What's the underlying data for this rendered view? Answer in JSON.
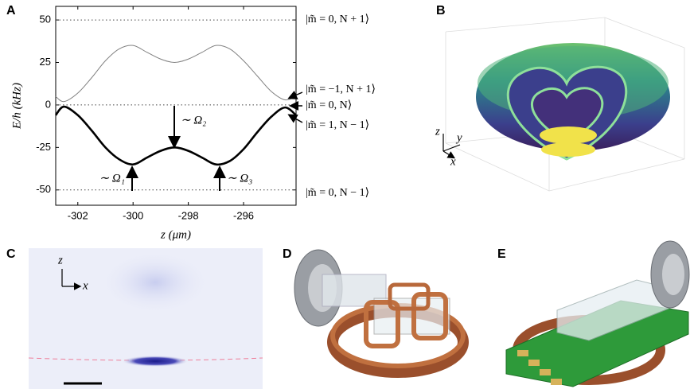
{
  "panel_labels": [
    "A",
    "B",
    "C",
    "D",
    "E"
  ],
  "chart_data": {
    "type": "line",
    "xlabel": "z (μm)",
    "ylabel": "E/h (kHz)",
    "x": [
      -302.8,
      -302.5,
      -302.0,
      -301.5,
      -301.0,
      -300.5,
      -300.0,
      -299.5,
      -299.0,
      -298.5,
      -298.0,
      -297.5,
      -297.0,
      -296.5,
      -296.0,
      -295.5,
      -295.0,
      -294.5,
      -294.1
    ],
    "series": [
      {
        "color": "#808080",
        "values": [
          5,
          2,
          7,
          16,
          26,
          33,
          35,
          31,
          27,
          25,
          27,
          31,
          35,
          33,
          26,
          17,
          8,
          3,
          5
        ]
      },
      {
        "color": "#000000",
        "values": [
          -6,
          -1,
          -6,
          -15,
          -25,
          -32,
          -35,
          -31,
          -27,
          -25,
          -27,
          -31,
          -35,
          -33,
          -26,
          -16,
          -7,
          -1.5,
          -6
        ]
      }
    ],
    "xlim": [
      -302.8,
      -294.1
    ],
    "ylim": [
      -59,
      58
    ],
    "xticks": [
      -302,
      -300,
      -298,
      -296
    ],
    "yticks": [
      50,
      25,
      0,
      -25,
      -50
    ],
    "hlines": [
      50,
      0,
      -50
    ],
    "annotations": [
      "∼ Ω₂",
      "∼ Ω₁",
      "∼ Ω₃"
    ],
    "state_labels": [
      "|m̃ = 0, N + 1⟩",
      "|m̃ = −1, N + 1⟩",
      "|m̃ = 0, N⟩",
      "|m̃ = 1, N − 1⟩",
      "|m̃ = 0, N − 1⟩"
    ]
  },
  "panel_b": {
    "axis_labels": [
      "z",
      "y",
      "x"
    ]
  },
  "panel_c": {
    "axis_labels": [
      "z",
      "x"
    ]
  }
}
